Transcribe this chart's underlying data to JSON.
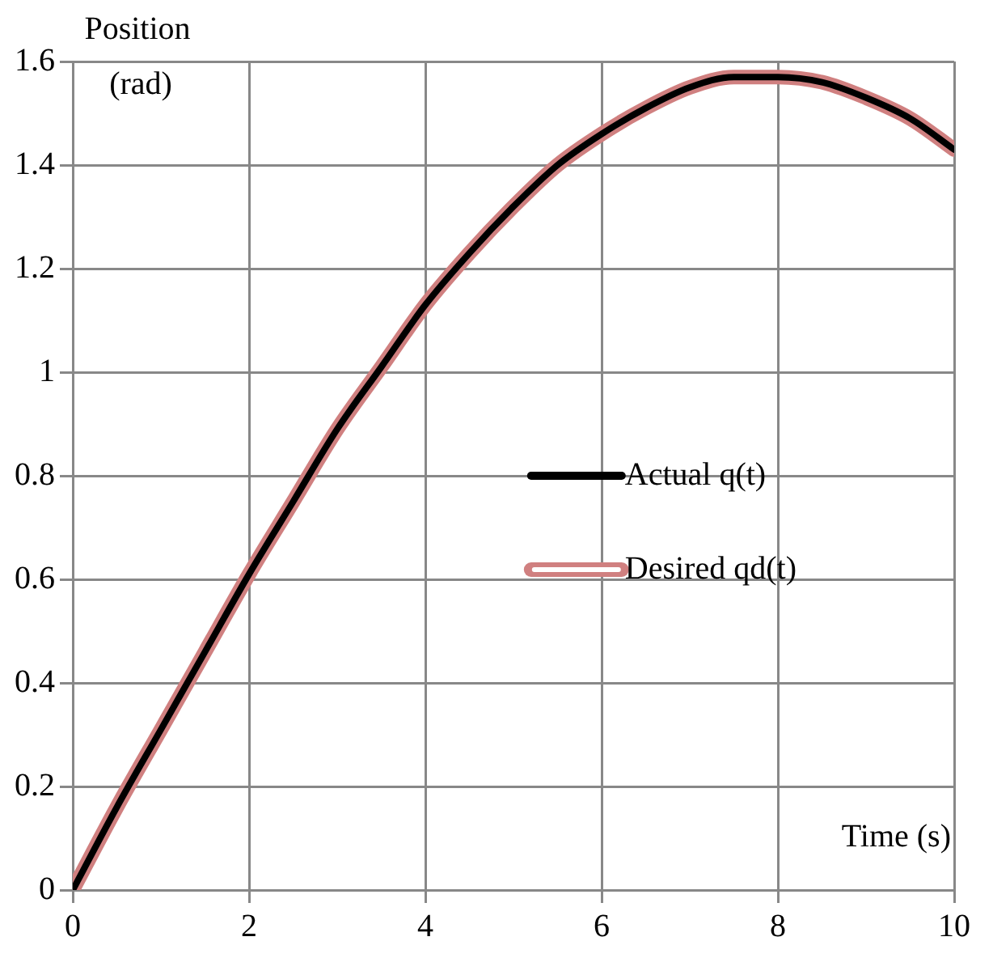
{
  "chart_data": {
    "type": "line",
    "xlabel": "Time (s)",
    "ylabel": "Position (rad)",
    "xlim": [
      0,
      10
    ],
    "xticks": [
      0,
      2,
      4,
      6,
      8,
      10
    ],
    "ylim": [
      0,
      1.6
    ],
    "yticks": [
      0,
      0.2,
      0.4,
      0.6,
      0.8,
      1,
      1.2,
      1.4,
      1.6
    ],
    "grid": true,
    "legend": "right",
    "marker": "none",
    "line_style": "solid",
    "x": [
      0,
      0.5,
      1,
      1.5,
      2,
      2.5,
      3,
      3.5,
      4,
      4.5,
      5,
      5.5,
      6,
      6.5,
      7,
      7.5,
      8,
      8.5,
      9,
      9.5,
      10
    ],
    "series": [
      {
        "name": "Actual q(t)",
        "color": "#000000",
        "values": [
          0,
          0.16,
          0.31,
          0.46,
          0.61,
          0.75,
          0.89,
          1.01,
          1.13,
          1.23,
          1.32,
          1.4,
          1.46,
          1.51,
          1.55,
          1.57,
          1.57,
          1.56,
          1.53,
          1.49,
          1.43
        ]
      },
      {
        "name": "Desired qd(t)",
        "color": "#d08080",
        "values": [
          0,
          0.16,
          0.31,
          0.46,
          0.61,
          0.75,
          0.89,
          1.01,
          1.13,
          1.23,
          1.32,
          1.4,
          1.46,
          1.51,
          1.55,
          1.57,
          1.57,
          1.56,
          1.53,
          1.49,
          1.43
        ]
      }
    ]
  }
}
